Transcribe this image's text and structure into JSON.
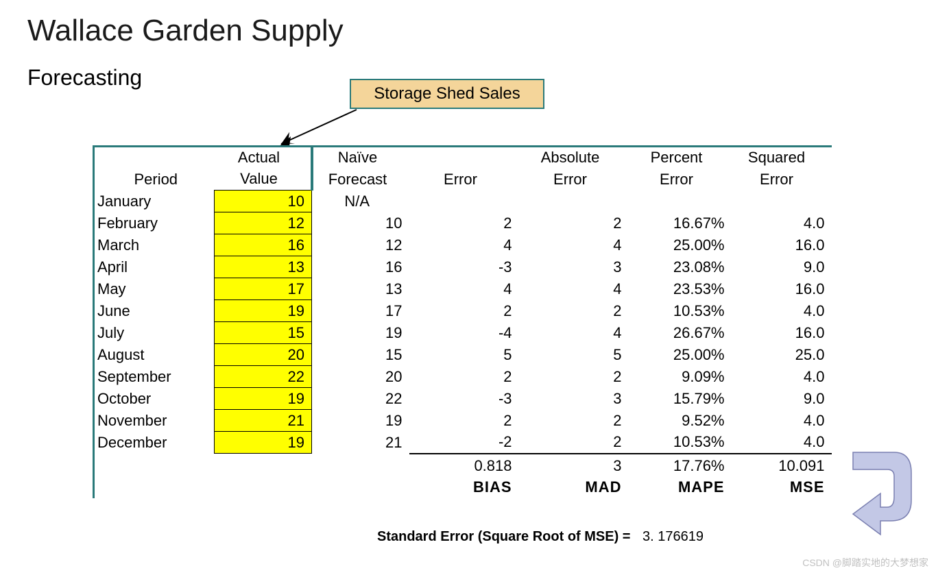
{
  "title": "Wallace Garden Supply",
  "subtitle": "Forecasting",
  "callout": "Storage Shed Sales",
  "headers": {
    "period": "Period",
    "actual1": "Actual",
    "actual2": "Value",
    "naive1": "Naïve",
    "naive2": "Forecast",
    "error": "Error",
    "abs1": "Absolute",
    "abs2": "Error",
    "pct1": "Percent",
    "pct2": "Error",
    "sq1": "Squared",
    "sq2": "Error"
  },
  "rows": [
    {
      "period": "January",
      "actual": "10",
      "forecast": "N/A",
      "error": "",
      "abs": "",
      "pct": "",
      "sq": ""
    },
    {
      "period": "February",
      "actual": "12",
      "forecast": "10",
      "error": "2",
      "abs": "2",
      "pct": "16.67%",
      "sq": "4.0"
    },
    {
      "period": "March",
      "actual": "16",
      "forecast": "12",
      "error": "4",
      "abs": "4",
      "pct": "25.00%",
      "sq": "16.0"
    },
    {
      "period": "April",
      "actual": "13",
      "forecast": "16",
      "error": "-3",
      "abs": "3",
      "pct": "23.08%",
      "sq": "9.0"
    },
    {
      "period": "May",
      "actual": "17",
      "forecast": "13",
      "error": "4",
      "abs": "4",
      "pct": "23.53%",
      "sq": "16.0"
    },
    {
      "period": "June",
      "actual": "19",
      "forecast": "17",
      "error": "2",
      "abs": "2",
      "pct": "10.53%",
      "sq": "4.0"
    },
    {
      "period": "July",
      "actual": "15",
      "forecast": "19",
      "error": "-4",
      "abs": "4",
      "pct": "26.67%",
      "sq": "16.0"
    },
    {
      "period": "August",
      "actual": "20",
      "forecast": "15",
      "error": "5",
      "abs": "5",
      "pct": "25.00%",
      "sq": "25.0"
    },
    {
      "period": "September",
      "actual": "22",
      "forecast": "20",
      "error": "2",
      "abs": "2",
      "pct": "9.09%",
      "sq": "4.0"
    },
    {
      "period": "October",
      "actual": "19",
      "forecast": "22",
      "error": "-3",
      "abs": "3",
      "pct": "15.79%",
      "sq": "9.0"
    },
    {
      "period": "November",
      "actual": "21",
      "forecast": "19",
      "error": "2",
      "abs": "2",
      "pct": "9.52%",
      "sq": "4.0"
    },
    {
      "period": "December",
      "actual": "19",
      "forecast": "21",
      "error": "-2",
      "abs": "2",
      "pct": "10.53%",
      "sq": "4.0"
    }
  ],
  "summary": {
    "bias_val": "0.818",
    "mad_val": "3",
    "mape_val": "17.76%",
    "mse_val": "10.091",
    "bias_lbl": "BIAS",
    "mad_lbl": "MAD",
    "mape_lbl": "MAPE",
    "mse_lbl": "MSE"
  },
  "stderr": {
    "label": "Standard Error (Square Root of MSE) =",
    "value": "3. 176619"
  },
  "watermark": "CSDN @脚踏实地的大梦想家",
  "colors": {
    "teal": "#2a7a7a",
    "highlight": "#ffff00",
    "callout_bg": "#f4d59a",
    "arrow_fill": "#b8bde0"
  }
}
